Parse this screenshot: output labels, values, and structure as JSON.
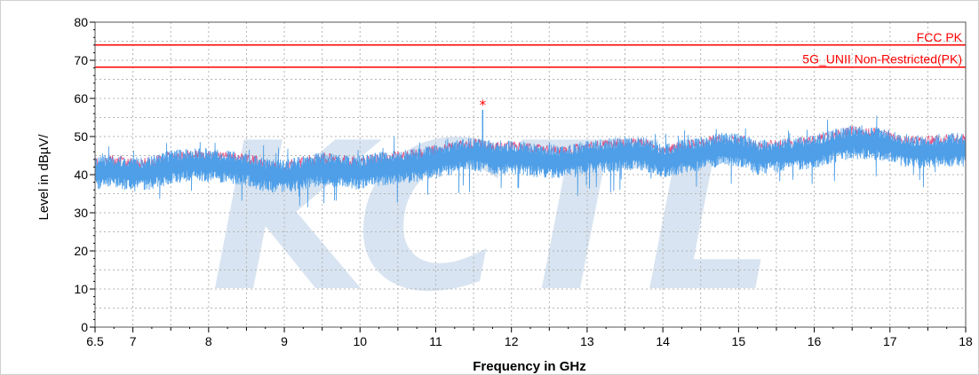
{
  "chart_data": {
    "type": "line",
    "title": "",
    "xlabel": "Frequency in GHz",
    "ylabel": "Level in dBµV/",
    "xlim": [
      6.5,
      18
    ],
    "ylim": [
      0,
      80
    ],
    "x_ticks": [
      6.5,
      7,
      8,
      9,
      10,
      11,
      12,
      13,
      14,
      15,
      16,
      17,
      18
    ],
    "x_tick_labels": [
      "6.5",
      "7",
      "8",
      "9",
      "10",
      "11",
      "12",
      "13",
      "14",
      "15",
      "16",
      "17",
      "18"
    ],
    "y_ticks": [
      0,
      10,
      20,
      30,
      40,
      50,
      60,
      70,
      80
    ],
    "y_tick_labels": [
      "0",
      "10",
      "20",
      "30",
      "40",
      "50",
      "60",
      "70",
      "80"
    ],
    "grid": true,
    "watermark": "KCTL",
    "limit_lines": [
      {
        "name": "FCC PK",
        "value": 74,
        "color": "#ff0000"
      },
      {
        "name": "5G_UNII Non-Restricted(PK)",
        "value": 68.2,
        "color": "#ff0000"
      }
    ],
    "series": [
      {
        "color": "#4f9fe8",
        "x": [
          6.5,
          6.75,
          7.0,
          7.25,
          7.5,
          7.75,
          8.0,
          8.25,
          8.5,
          8.75,
          9.0,
          9.25,
          9.5,
          9.75,
          10.0,
          10.25,
          10.5,
          10.75,
          11.0,
          11.25,
          11.5,
          11.75,
          12.0,
          12.25,
          12.5,
          12.75,
          13.0,
          13.25,
          13.5,
          13.75,
          14.0,
          14.25,
          14.5,
          14.75,
          15.0,
          15.25,
          15.5,
          15.75,
          16.0,
          16.25,
          16.5,
          16.75,
          17.0,
          17.25,
          17.5,
          17.75,
          18.0
        ],
        "y": [
          40.5,
          41.0,
          40.0,
          40.5,
          42.0,
          42.5,
          42.5,
          42.0,
          41.5,
          40.0,
          39.5,
          40.5,
          41.5,
          41.0,
          40.5,
          41.5,
          42.0,
          42.5,
          43.5,
          44.5,
          45.5,
          44.5,
          44.5,
          44.0,
          43.5,
          43.5,
          44.5,
          45.0,
          45.5,
          45.5,
          43.5,
          44.5,
          45.5,
          46.5,
          46.5,
          44.5,
          45.0,
          45.5,
          46.0,
          47.5,
          48.5,
          48.5,
          47.5,
          46.0,
          46.0,
          46.5,
          46.5
        ]
      }
    ],
    "markers": [
      {
        "x": 11.62,
        "y": 58.5,
        "symbol": "*",
        "color": "#ff0000"
      }
    ]
  }
}
